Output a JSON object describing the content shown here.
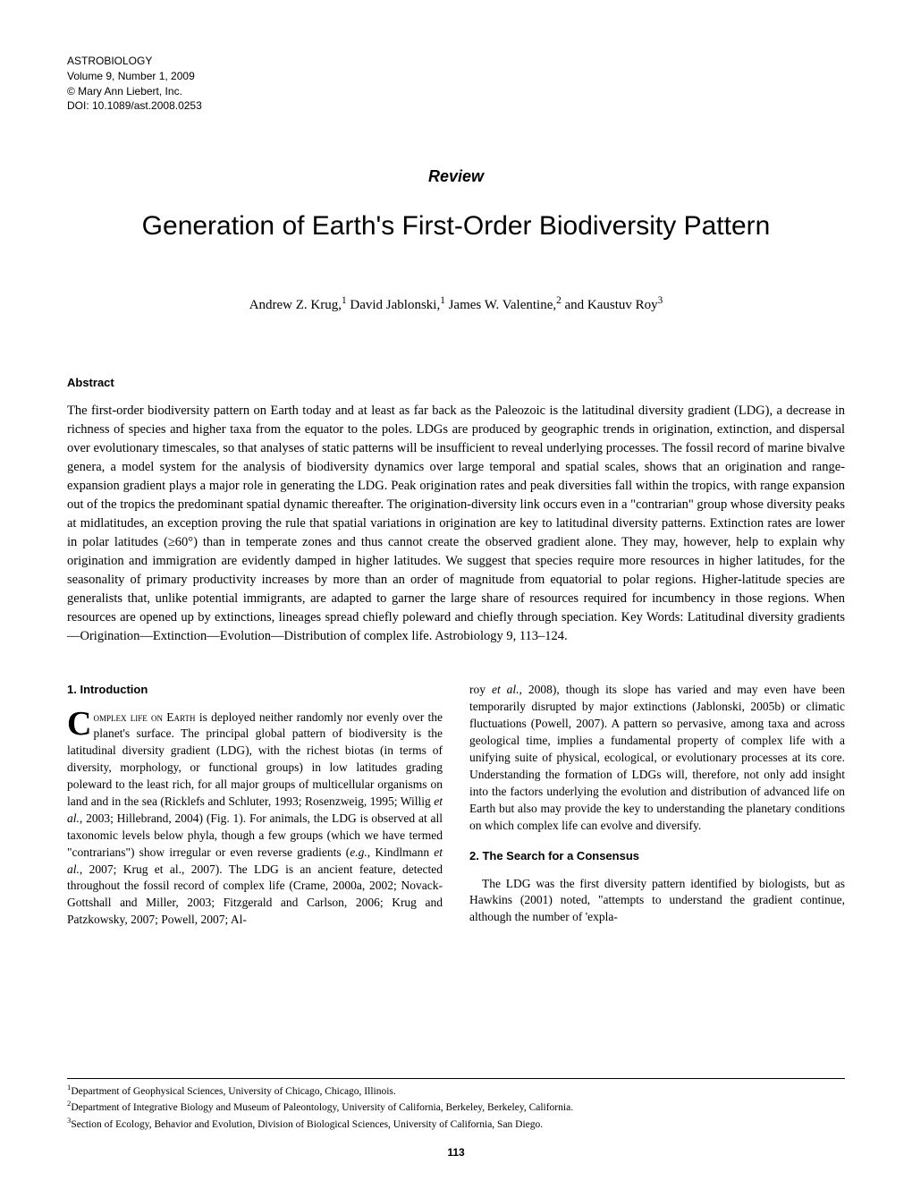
{
  "meta": {
    "journal": "ASTROBIOLOGY",
    "volume_line": "Volume 9, Number 1, 2009",
    "copyright": "© Mary Ann Liebert, Inc.",
    "doi": "DOI: 10.1089/ast.2008.0253"
  },
  "article_type": "Review",
  "title": "Generation of Earth's First-Order Biodiversity Pattern",
  "authors_html": "Andrew Z. Krug,<sup>1</sup> David Jablonski,<sup>1</sup> James W. Valentine,<sup>2</sup> and Kaustuv Roy<sup>3</sup>",
  "abstract": {
    "heading": "Abstract",
    "body": "The first-order biodiversity pattern on Earth today and at least as far back as the Paleozoic is the latitudinal diversity gradient (LDG), a decrease in richness of species and higher taxa from the equator to the poles. LDGs are produced by geographic trends in origination, extinction, and dispersal over evolutionary timescales, so that analyses of static patterns will be insufficient to reveal underlying processes. The fossil record of marine bivalve genera, a model system for the analysis of biodiversity dynamics over large temporal and spatial scales, shows that an origination and range-expansion gradient plays a major role in generating the LDG. Peak origination rates and peak diversities fall within the tropics, with range expansion out of the tropics the predominant spatial dynamic thereafter. The origination-diversity link occurs even in a \"contrarian\" group whose diversity peaks at midlatitudes, an exception proving the rule that spatial variations in origination are key to latitudinal diversity patterns. Extinction rates are lower in polar latitudes (≥60°) than in temperate zones and thus cannot create the observed gradient alone. They may, however, help to explain why origination and immigration are evidently damped in higher latitudes. We suggest that species require more resources in higher latitudes, for the seasonality of primary productivity increases by more than an order of magnitude from equatorial to polar regions. Higher-latitude species are generalists that, unlike potential immigrants, are adapted to garner the large share of resources required for incumbency in those regions. When resources are opened up by extinctions, lineages spread chiefly poleward and chiefly through speciation. Key Words: Latitudinal diversity gradients—Origination—Extinction—Evolution—Distribution of complex life. Astrobiology 9, 113–124."
  },
  "sections": {
    "intro_heading": "1. Introduction",
    "intro_first_html": "<span class=\"smallcaps\">Complex life on Earth</span> is deployed neither randomly nor evenly over the planet's surface. The principal global pattern of biodiversity is the latitudinal diversity gradient (LDG), with the richest biotas (in terms of diversity, morphology, or functional groups) in low latitudes grading poleward to the least rich, for all major groups of multicellular organisms on land and in the sea (Ricklefs and Schluter, 1993; Rosenzweig, 1995; Willig <i>et al.</i>, 2003; Hillebrand, 2004) (Fig. 1). For animals, the LDG is observed at all taxonomic levels below phyla, though a few groups (which we have termed \"contrarians\") show irregular or even reverse gradients (<i>e.g.</i>, Kindlmann <i>et al.</i>, 2007; Krug et al., 2007). The LDG is an ancient feature, detected throughout the fossil record of complex life (Crame, 2000a, 2002; Novack-Gottshall and Miller, 2003; Fitzgerald and Carlson, 2006; Krug and Patzkowsky, 2007; Powell, 2007; Al-",
    "intro_cont_html": "roy <i>et al.</i>, 2008), though its slope has varied and may even have been temporarily disrupted by major extinctions (Jablonski, 2005b) or climatic fluctuations (Powell, 2007). A pattern so pervasive, among taxa and across geological time, implies a fundamental property of complex life with a unifying suite of physical, ecological, or evolutionary processes at its core. Understanding the formation of LDGs will, therefore, not only add insight into the factors underlying the evolution and distribution of advanced life on Earth but also may provide the key to understanding the planetary conditions on which complex life can evolve and diversify.",
    "search_heading": "2. The Search for a Consensus",
    "search_body_html": "The LDG was the first diversity pattern identified by biologists, but as Hawkins (2001) noted, \"attempts to understand the gradient continue, although the number of 'expla-"
  },
  "footnotes": {
    "f1": "Department of Geophysical Sciences, University of Chicago, Chicago, Illinois.",
    "f2": "Department of Integrative Biology and Museum of Paleontology, University of California, Berkeley, Berkeley, California.",
    "f3": "Section of Ecology, Behavior and Evolution, Division of Biological Sciences, University of California, San Diego."
  },
  "page_number": "113"
}
